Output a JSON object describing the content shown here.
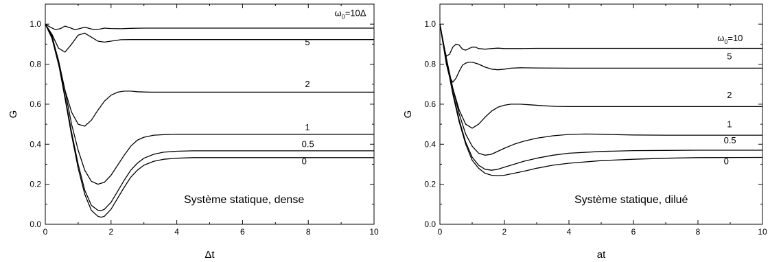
{
  "chart_data": [
    {
      "type": "line",
      "xlabel": "Δt",
      "ylabel": "G",
      "xlim": [
        0,
        10
      ],
      "ylim": [
        0,
        1.1
      ],
      "xticks": [
        "0",
        "2",
        "4",
        "6",
        "8",
        "10"
      ],
      "yticks": [
        "0.0",
        "0.2",
        "0.4",
        "0.6",
        "0.8",
        "1.0"
      ],
      "annotation": "Système statique, dense",
      "grid": false,
      "series": [
        {
          "name": "ω₀=10Δ",
          "label_main": "ω",
          "label_sub": "0",
          "label_rest": "=10Δ",
          "label_at": [
            8.8,
            1.04
          ],
          "x": [
            0,
            0.15,
            0.3,
            0.45,
            0.6,
            0.75,
            0.9,
            1.05,
            1.2,
            1.35,
            1.5,
            1.65,
            1.8,
            2,
            2.3,
            2.6,
            3,
            10
          ],
          "y": [
            1.0,
            0.985,
            0.973,
            0.977,
            0.99,
            0.982,
            0.972,
            0.978,
            0.985,
            0.978,
            0.972,
            0.975,
            0.98,
            0.978,
            0.977,
            0.979,
            0.98,
            0.98
          ]
        },
        {
          "name": "5",
          "label_at": [
            7.9,
            0.895
          ],
          "x": [
            0,
            0.2,
            0.4,
            0.6,
            0.8,
            1.0,
            1.2,
            1.4,
            1.6,
            1.8,
            2.0,
            2.3,
            2.6,
            3,
            10
          ],
          "y": [
            1.0,
            0.95,
            0.88,
            0.86,
            0.9,
            0.945,
            0.955,
            0.935,
            0.915,
            0.91,
            0.915,
            0.922,
            0.923,
            0.923,
            0.923
          ]
        },
        {
          "name": "2",
          "label_at": [
            7.9,
            0.685
          ],
          "x": [
            0,
            0.2,
            0.4,
            0.6,
            0.8,
            1.0,
            1.2,
            1.4,
            1.6,
            1.8,
            2.0,
            2.2,
            2.4,
            2.6,
            2.8,
            3.2,
            3.6,
            10
          ],
          "y": [
            1.0,
            0.93,
            0.8,
            0.67,
            0.56,
            0.5,
            0.49,
            0.52,
            0.57,
            0.615,
            0.645,
            0.66,
            0.665,
            0.665,
            0.662,
            0.66,
            0.66,
            0.66
          ]
        },
        {
          "name": "1",
          "label_at": [
            7.9,
            0.47
          ],
          "x": [
            0,
            0.2,
            0.4,
            0.6,
            0.8,
            1.0,
            1.2,
            1.4,
            1.6,
            1.8,
            2.0,
            2.2,
            2.4,
            2.6,
            2.8,
            3.0,
            3.3,
            3.6,
            4.0,
            10
          ],
          "y": [
            1.0,
            0.94,
            0.82,
            0.67,
            0.5,
            0.37,
            0.27,
            0.215,
            0.2,
            0.21,
            0.245,
            0.295,
            0.345,
            0.39,
            0.42,
            0.435,
            0.445,
            0.448,
            0.45,
            0.45
          ]
        },
        {
          "name": "0.5",
          "label_at": [
            7.8,
            0.385
          ],
          "x": [
            0,
            0.2,
            0.4,
            0.6,
            0.8,
            1.0,
            1.2,
            1.4,
            1.6,
            1.7,
            1.8,
            2.0,
            2.2,
            2.4,
            2.6,
            2.8,
            3.0,
            3.3,
            3.6,
            4.0,
            4.5,
            10
          ],
          "y": [
            1.0,
            0.945,
            0.81,
            0.64,
            0.46,
            0.3,
            0.17,
            0.095,
            0.07,
            0.068,
            0.075,
            0.11,
            0.165,
            0.22,
            0.27,
            0.305,
            0.33,
            0.35,
            0.36,
            0.365,
            0.367,
            0.367
          ]
        },
        {
          "name": "0",
          "label_at": [
            7.8,
            0.3
          ],
          "x": [
            0,
            0.2,
            0.4,
            0.6,
            0.8,
            1.0,
            1.2,
            1.4,
            1.6,
            1.7,
            1.8,
            2.0,
            2.2,
            2.4,
            2.6,
            2.8,
            3.0,
            3.3,
            3.6,
            4.0,
            4.5,
            10
          ],
          "y": [
            1.0,
            0.945,
            0.805,
            0.63,
            0.445,
            0.28,
            0.15,
            0.07,
            0.04,
            0.035,
            0.04,
            0.075,
            0.13,
            0.185,
            0.235,
            0.27,
            0.295,
            0.315,
            0.325,
            0.33,
            0.333,
            0.333
          ]
        }
      ]
    },
    {
      "type": "line",
      "xlabel": "at",
      "ylabel": "G",
      "xlim": [
        0,
        10
      ],
      "ylim": [
        0,
        1.1
      ],
      "xticks": [
        "0",
        "2",
        "4",
        "6",
        "8",
        "10"
      ],
      "yticks": [
        "0.0",
        "0.2",
        "0.4",
        "0.6",
        "0.8",
        "1.0"
      ],
      "annotation": "Système statique, dilué",
      "grid": false,
      "series": [
        {
          "name": "ω₀=10",
          "label_main": "ω",
          "label_sub": "0",
          "label_rest": "=10",
          "label_at": [
            8.6,
            0.915
          ],
          "x": [
            0,
            0.1,
            0.2,
            0.3,
            0.4,
            0.5,
            0.6,
            0.7,
            0.8,
            0.9,
            1.0,
            1.1,
            1.2,
            1.4,
            1.6,
            1.8,
            2.0,
            2.5,
            3,
            10
          ],
          "y": [
            1.0,
            0.9,
            0.84,
            0.85,
            0.885,
            0.9,
            0.895,
            0.875,
            0.87,
            0.878,
            0.885,
            0.885,
            0.878,
            0.875,
            0.878,
            0.88,
            0.878,
            0.878,
            0.879,
            0.879
          ]
        },
        {
          "name": "5",
          "label_at": [
            8.9,
            0.825
          ],
          "x": [
            0,
            0.1,
            0.2,
            0.3,
            0.4,
            0.5,
            0.6,
            0.7,
            0.8,
            0.9,
            1.0,
            1.2,
            1.4,
            1.6,
            1.8,
            2.0,
            2.2,
            2.5,
            3,
            4,
            10
          ],
          "y": [
            1.0,
            0.9,
            0.8,
            0.735,
            0.71,
            0.73,
            0.765,
            0.795,
            0.805,
            0.81,
            0.81,
            0.8,
            0.785,
            0.775,
            0.772,
            0.775,
            0.78,
            0.782,
            0.781,
            0.78,
            0.78
          ]
        },
        {
          "name": "2",
          "label_at": [
            8.9,
            0.63
          ],
          "x": [
            0,
            0.2,
            0.4,
            0.6,
            0.8,
            1.0,
            1.2,
            1.4,
            1.6,
            1.8,
            2.0,
            2.2,
            2.5,
            2.8,
            3.2,
            3.6,
            4,
            5,
            10
          ],
          "y": [
            1.0,
            0.82,
            0.68,
            0.57,
            0.5,
            0.48,
            0.5,
            0.535,
            0.565,
            0.585,
            0.595,
            0.6,
            0.6,
            0.597,
            0.592,
            0.589,
            0.588,
            0.588,
            0.588
          ]
        },
        {
          "name": "1",
          "label_at": [
            8.9,
            0.485
          ],
          "x": [
            0,
            0.2,
            0.4,
            0.6,
            0.8,
            1.0,
            1.2,
            1.4,
            1.6,
            1.8,
            2.0,
            2.3,
            2.6,
            3.0,
            3.5,
            4.0,
            4.5,
            5.0,
            5.5,
            6,
            7,
            10
          ],
          "y": [
            1.0,
            0.83,
            0.68,
            0.55,
            0.45,
            0.39,
            0.355,
            0.345,
            0.35,
            0.365,
            0.38,
            0.4,
            0.415,
            0.43,
            0.442,
            0.449,
            0.451,
            0.45,
            0.448,
            0.446,
            0.445,
            0.445
          ]
        },
        {
          "name": "0.5",
          "label_at": [
            8.8,
            0.405
          ],
          "x": [
            0,
            0.2,
            0.4,
            0.6,
            0.8,
            1.0,
            1.2,
            1.4,
            1.6,
            1.8,
            2.0,
            2.3,
            2.6,
            3.0,
            3.5,
            4.0,
            5.0,
            6.0,
            7.0,
            8.0,
            10
          ],
          "y": [
            1.0,
            0.82,
            0.66,
            0.52,
            0.41,
            0.335,
            0.295,
            0.275,
            0.27,
            0.275,
            0.285,
            0.3,
            0.315,
            0.33,
            0.345,
            0.355,
            0.364,
            0.368,
            0.369,
            0.37,
            0.37
          ]
        },
        {
          "name": "0",
          "label_at": [
            8.8,
            0.3
          ],
          "x": [
            0,
            0.2,
            0.4,
            0.6,
            0.8,
            1.0,
            1.2,
            1.4,
            1.6,
            1.8,
            2.0,
            2.3,
            2.6,
            3.0,
            3.5,
            4.0,
            5.0,
            6.0,
            7.0,
            8.0,
            10
          ],
          "y": [
            1.0,
            0.82,
            0.65,
            0.51,
            0.4,
            0.32,
            0.28,
            0.255,
            0.245,
            0.243,
            0.245,
            0.255,
            0.265,
            0.28,
            0.295,
            0.305,
            0.318,
            0.325,
            0.33,
            0.333,
            0.334
          ]
        }
      ]
    }
  ]
}
